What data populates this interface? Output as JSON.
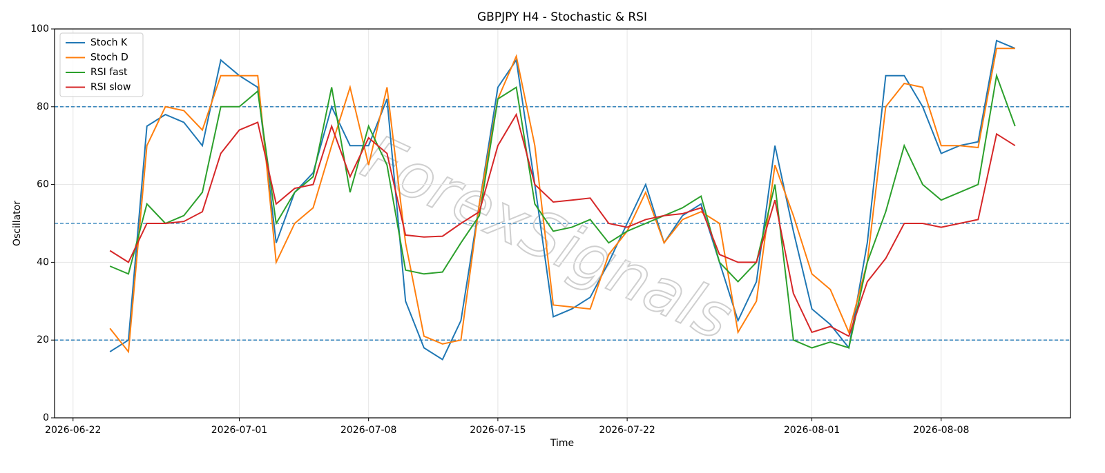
{
  "chart_data": {
    "type": "line",
    "title": "GBPJPY H4 - Stochastic & RSI",
    "xlabel": "Time",
    "ylabel": "Oscillator",
    "watermark": "ForexSignals",
    "x": [
      "2026-06-24",
      "2026-06-25",
      "2026-06-26",
      "2026-06-27",
      "2026-06-28",
      "2026-06-29",
      "2026-06-30",
      "2026-07-01",
      "2026-07-02",
      "2026-07-03",
      "2026-07-04",
      "2026-07-05",
      "2026-07-06",
      "2026-07-07",
      "2026-07-08",
      "2026-07-09",
      "2026-07-10",
      "2026-07-11",
      "2026-07-12",
      "2026-07-13",
      "2026-07-14",
      "2026-07-15",
      "2026-07-16",
      "2026-07-17",
      "2026-07-18",
      "2026-07-19",
      "2026-07-20",
      "2026-07-21",
      "2026-07-22",
      "2026-07-23",
      "2026-07-24",
      "2026-07-25",
      "2026-07-26",
      "2026-07-27",
      "2026-07-28",
      "2026-07-29",
      "2026-07-30",
      "2026-07-31",
      "2026-08-01",
      "2026-08-02",
      "2026-08-03",
      "2026-08-04",
      "2026-08-05",
      "2026-08-06",
      "2026-08-07",
      "2026-08-08",
      "2026-08-09",
      "2026-08-10",
      "2026-08-11",
      "2026-08-12"
    ],
    "series": [
      {
        "name": "Stoch K",
        "color": "#1f77b4",
        "values": [
          17,
          20,
          75,
          78,
          76,
          70,
          92,
          88,
          85,
          45,
          58,
          63,
          80,
          70,
          70,
          82,
          30,
          18,
          15,
          25,
          55,
          85,
          92,
          60,
          26,
          28,
          31,
          40,
          50,
          60,
          45,
          52,
          55,
          40,
          25,
          35,
          70,
          48,
          28,
          24,
          18,
          45,
          88,
          88,
          80,
          68,
          70,
          71,
          97,
          95
        ]
      },
      {
        "name": "Stoch D",
        "color": "#ff7f0e",
        "values": [
          23,
          17,
          70,
          80,
          79,
          74,
          88,
          88,
          88,
          40,
          50,
          54,
          70,
          85,
          65,
          85,
          45,
          21,
          19,
          20,
          55,
          82,
          93,
          70,
          29,
          28.5,
          28,
          42,
          48,
          58,
          45,
          51,
          53,
          50,
          22,
          30,
          65,
          52,
          37,
          33,
          22,
          40,
          80,
          86,
          85,
          70,
          70,
          69.5,
          95,
          95
        ]
      },
      {
        "name": "RSI fast",
        "color": "#2ca02c",
        "values": [
          39,
          37,
          55,
          50,
          52,
          58,
          80,
          80,
          84,
          50,
          58,
          62,
          85,
          58,
          75,
          65,
          38,
          37,
          37.5,
          45,
          52,
          82,
          85,
          55,
          48,
          49,
          51,
          45,
          48,
          50,
          52,
          54,
          57,
          40,
          35,
          40,
          60,
          20,
          18,
          19.5,
          18,
          40,
          53,
          70,
          60,
          56,
          58,
          60,
          88,
          75
        ]
      },
      {
        "name": "RSI slow",
        "color": "#d62728",
        "values": [
          43,
          40,
          50,
          50,
          50.5,
          53,
          68,
          74,
          76,
          55,
          59,
          60,
          75,
          62,
          72,
          68,
          47,
          46.5,
          46.7,
          50,
          53,
          70,
          78,
          60,
          55.5,
          56,
          56.5,
          50,
          49,
          51,
          52,
          52.5,
          54,
          42,
          40,
          40,
          56,
          32,
          22,
          23.5,
          21,
          35,
          41,
          50,
          50,
          49,
          50,
          51,
          73,
          70
        ]
      }
    ],
    "xlim": [
      "2026-06-21",
      "2026-08-15"
    ],
    "xticks": [
      "2026-06-22",
      "2026-07-01",
      "2026-07-08",
      "2026-07-15",
      "2026-07-22",
      "2026-08-01",
      "2026-08-08"
    ],
    "ylim": [
      0,
      100
    ],
    "yticks": [
      0,
      20,
      40,
      60,
      80,
      100
    ],
    "hlines": [
      20,
      50,
      80
    ],
    "hline_color": "#1f77b4",
    "grid": true,
    "legend": "upper-left"
  }
}
